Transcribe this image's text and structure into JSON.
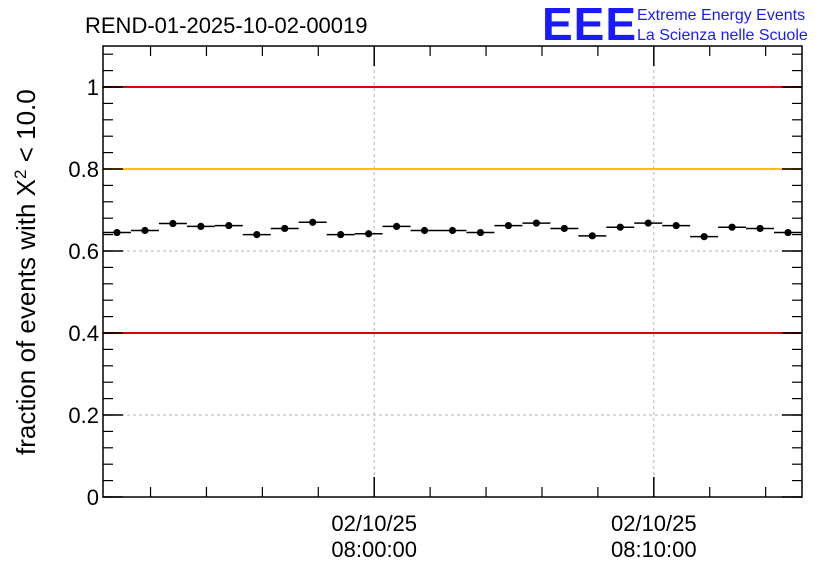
{
  "chart_data": {
    "type": "scatter",
    "title": "REND-01-2025-10-02-00019",
    "logo": {
      "mark": "EEE",
      "line1": "Extreme Energy Events",
      "line2": "La Scienza nelle Scuole"
    },
    "ylabel": {
      "prefix": "fraction of events with ",
      "symbol": "X",
      "superscript": "2",
      "suffix": " < 10.0"
    },
    "ylim": [
      0,
      1.1
    ],
    "yticks": [
      {
        "value": 0,
        "label": "0"
      },
      {
        "value": 0.2,
        "label": "0.2"
      },
      {
        "value": 0.4,
        "label": "0.4"
      },
      {
        "value": 0.6,
        "label": "0.6"
      },
      {
        "value": 0.8,
        "label": "0.8"
      },
      {
        "value": 1,
        "label": "1"
      }
    ],
    "x_range_min": [
      -4.85,
      7.65
    ],
    "xticks": [
      {
        "value": 0,
        "date": "02/10/25",
        "time": "08:00:00"
      },
      {
        "value": 5,
        "date": "02/10/25",
        "time": "08:10:00"
      }
    ],
    "grid": true,
    "reference_lines": [
      {
        "value": 1.0,
        "color": "#dd0000"
      },
      {
        "value": 0.8,
        "color": "#ffc000"
      },
      {
        "value": 0.4,
        "color": "#dd0000"
      }
    ],
    "bin_width_min": 0.5,
    "x": [
      -4.6,
      -4.1,
      -3.6,
      -3.1,
      -2.6,
      -2.1,
      -1.6,
      -1.1,
      -0.6,
      -0.1,
      0.4,
      0.9,
      1.4,
      1.9,
      2.4,
      2.9,
      3.4,
      3.9,
      4.4,
      4.9,
      5.4,
      5.9,
      6.4,
      6.9,
      7.4
    ],
    "y": [
      0.645,
      0.65,
      0.667,
      0.66,
      0.662,
      0.64,
      0.655,
      0.67,
      0.64,
      0.642,
      0.66,
      0.65,
      0.65,
      0.645,
      0.662,
      0.668,
      0.655,
      0.637,
      0.658,
      0.668,
      0.662,
      0.635,
      0.658,
      0.655,
      0.645
    ],
    "yerr": [
      0.006,
      0.006,
      0.006,
      0.006,
      0.006,
      0.006,
      0.006,
      0.006,
      0.006,
      0.006,
      0.006,
      0.006,
      0.006,
      0.006,
      0.006,
      0.006,
      0.006,
      0.006,
      0.006,
      0.006,
      0.006,
      0.006,
      0.006,
      0.006,
      0.006
    ]
  }
}
